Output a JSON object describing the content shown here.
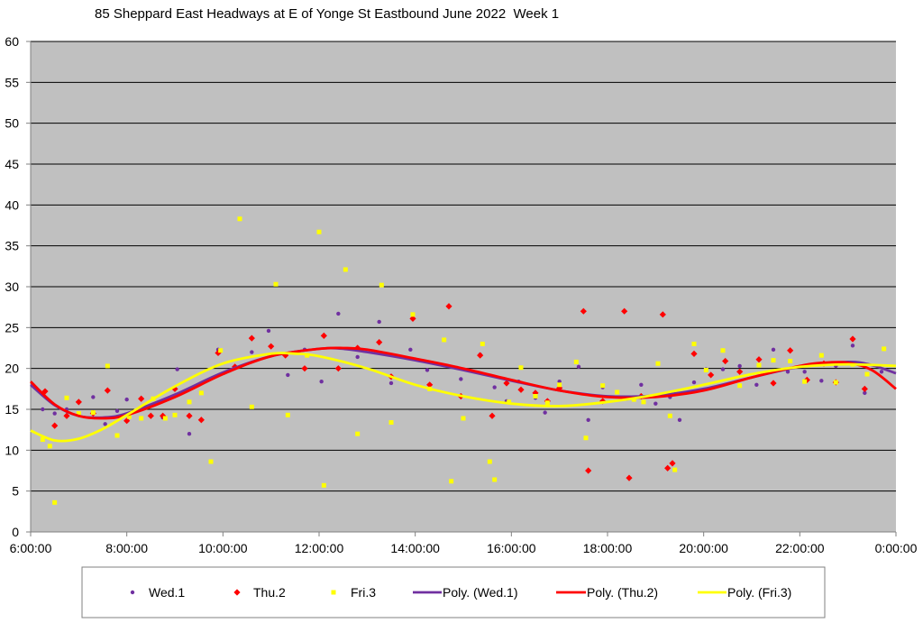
{
  "chart_data": {
    "type": "scatter",
    "title": "85 Sheppard East Headways at E of Yonge St Eastbound June 2022  Week 1",
    "xlabel": "",
    "ylabel": "",
    "x_unit": "hours since midnight",
    "xlim": [
      6,
      24
    ],
    "ylim": [
      0,
      60
    ],
    "grid": true,
    "legend_position": "bottom",
    "x_tick_values": [
      6,
      8,
      10,
      12,
      14,
      16,
      18,
      20,
      22,
      24
    ],
    "x_tick_labels": [
      "6:00:00",
      "8:00:00",
      "10:00:00",
      "12:00:00",
      "14:00:00",
      "16:00:00",
      "18:00:00",
      "20:00:00",
      "22:00:00",
      "0:00:00"
    ],
    "y_tick_values": [
      0,
      5,
      10,
      15,
      20,
      25,
      30,
      35,
      40,
      45,
      50,
      55,
      60
    ],
    "y_tick_labels": [
      "0",
      "5",
      "10",
      "15",
      "20",
      "25",
      "30",
      "35",
      "40",
      "45",
      "50",
      "55",
      "60"
    ],
    "colors": {
      "plot_bg": "#c0c0c0",
      "grid": "#000000",
      "wed": "#7030a0",
      "thu": "#ff0000",
      "fri": "#ffff00"
    },
    "series": [
      {
        "name": "Wed.1",
        "kind": "points",
        "marker": "circle",
        "color": "#7030a0",
        "x": [
          6.25,
          6.5,
          6.75,
          7.3,
          7.55,
          7.8,
          8.0,
          8.75,
          9.05,
          9.3,
          9.9,
          10.6,
          10.95,
          11.35,
          11.7,
          12.05,
          12.4,
          12.8,
          13.25,
          13.5,
          13.9,
          14.25,
          14.95,
          15.35,
          15.65,
          15.9,
          16.15,
          16.5,
          16.7,
          17.0,
          17.4,
          17.6,
          17.9,
          18.4,
          18.7,
          19.0,
          19.3,
          19.5,
          19.8,
          20.05,
          20.4,
          20.75,
          21.1,
          21.45,
          21.75,
          22.1,
          22.45,
          22.75,
          23.1,
          23.35,
          23.7
        ],
        "y": [
          15,
          14.5,
          15,
          16.5,
          13.2,
          14.8,
          16.2,
          14,
          19.9,
          12,
          22.3,
          22,
          24.6,
          19.2,
          22.3,
          18.4,
          26.7,
          21.4,
          25.7,
          18.2,
          22.3,
          19.8,
          18.7,
          21.7,
          17.7,
          16,
          18.4,
          16.4,
          14.6,
          18.4,
          20.2,
          13.7,
          17.7,
          16.3,
          18,
          15.7,
          16.5,
          13.7,
          18.3,
          19.9,
          19.9,
          20.3,
          18,
          22.3,
          19.6,
          19.6,
          18.5,
          20.3,
          22.8,
          17,
          19.6
        ]
      },
      {
        "name": "Thu.2",
        "kind": "points",
        "marker": "diamond",
        "color": "#ff0000",
        "x": [
          6.3,
          6.5,
          6.75,
          7.0,
          7.3,
          7.6,
          8.0,
          8.3,
          8.5,
          8.75,
          9.0,
          9.3,
          9.55,
          9.9,
          10.25,
          10.6,
          11.0,
          11.3,
          11.7,
          12.1,
          12.4,
          12.8,
          13.25,
          13.5,
          13.95,
          14.3,
          14.7,
          14.95,
          15.35,
          15.6,
          15.9,
          16.2,
          16.5,
          16.75,
          17.0,
          17.5,
          17.6,
          17.9,
          18.35,
          18.45,
          18.7,
          19.15,
          19.25,
          19.35,
          19.8,
          20.15,
          20.45,
          20.75,
          21.15,
          21.45,
          21.8,
          22.15,
          22.5,
          22.75,
          23.1,
          23.35
        ],
        "y": [
          17.2,
          13,
          14.2,
          15.9,
          14.5,
          17.3,
          13.6,
          16.3,
          14.2,
          14.2,
          17.5,
          14.2,
          13.7,
          21.9,
          20.2,
          23.7,
          22.7,
          21.6,
          20,
          24,
          20,
          22.5,
          23.2,
          19,
          26.1,
          18,
          27.6,
          16.6,
          21.6,
          14.2,
          18.2,
          17.4,
          17,
          16,
          17.6,
          27,
          7.5,
          16,
          27,
          6.6,
          16.6,
          26.6,
          7.8,
          8.4,
          21.8,
          19.2,
          20.9,
          19.6,
          21.1,
          18.2,
          22.2,
          18.6,
          20.6,
          18.3,
          23.6,
          17.5
        ]
      },
      {
        "name": "Fri.3",
        "kind": "points",
        "marker": "square",
        "color": "#ffff00",
        "x": [
          6.25,
          6.4,
          6.5,
          6.75,
          7.0,
          7.3,
          7.6,
          7.8,
          8.05,
          8.3,
          8.55,
          8.8,
          9.0,
          9.3,
          9.55,
          9.75,
          9.95,
          10.35,
          10.6,
          11.1,
          11.35,
          11.75,
          12.0,
          12.1,
          12.55,
          12.8,
          13.3,
          13.5,
          13.95,
          14.3,
          14.6,
          14.75,
          15.0,
          15.4,
          15.55,
          15.65,
          15.95,
          16.2,
          16.5,
          16.75,
          17.0,
          17.35,
          17.55,
          17.9,
          18.2,
          18.55,
          18.75,
          19.05,
          19.3,
          19.4,
          19.8,
          20.05,
          20.4,
          20.75,
          21.15,
          21.45,
          21.8,
          22.1,
          22.45,
          22.75,
          23.1,
          23.4,
          23.75
        ],
        "y": [
          11.3,
          10.5,
          3.6,
          16.4,
          14.5,
          14.6,
          20.3,
          11.8,
          14.1,
          13.9,
          16.3,
          13.9,
          14.3,
          15.9,
          17,
          8.6,
          22.2,
          38.3,
          15.3,
          30.3,
          14.3,
          21.6,
          36.7,
          5.7,
          32.1,
          12,
          30.2,
          13.4,
          26.6,
          17.5,
          23.5,
          6.2,
          13.9,
          23,
          8.6,
          6.4,
          15.9,
          20.1,
          16.6,
          15.8,
          18,
          20.8,
          11.5,
          17.9,
          17.1,
          16.2,
          15.9,
          20.6,
          14.2,
          7.6,
          23,
          19.8,
          22.2,
          17.9,
          20.4,
          21,
          20.9,
          18.4,
          21.6,
          18.3,
          20.5,
          19.3,
          22.4
        ]
      },
      {
        "name": "Poly. (Wed.1)",
        "kind": "line",
        "color": "#7030a0",
        "x": [
          6,
          6.5,
          7,
          7.5,
          8,
          9,
          10,
          11,
          12,
          12.5,
          13,
          14,
          15,
          16,
          17,
          18,
          19,
          20,
          21,
          22,
          23,
          23.5,
          24
        ],
        "y": [
          18,
          15.5,
          14.2,
          14,
          14.5,
          16.8,
          19.5,
          21.5,
          22.4,
          22.4,
          22,
          21,
          19.8,
          18.5,
          17.3,
          16.6,
          16.7,
          17.5,
          18.9,
          20.2,
          20.8,
          20.4,
          19.4
        ]
      },
      {
        "name": "Poly. (Thu.2)",
        "kind": "line",
        "color": "#ff0000",
        "x": [
          6,
          6.5,
          7,
          7.5,
          8,
          9,
          10,
          11,
          12,
          12.5,
          13,
          14,
          15,
          16,
          17,
          18,
          19,
          20,
          21,
          22,
          22.5,
          23,
          23.5,
          24
        ],
        "y": [
          18.4,
          15.6,
          14.2,
          13.9,
          14.3,
          16.5,
          19.3,
          21.5,
          22.4,
          22.5,
          22.3,
          21.2,
          20,
          18.6,
          17.3,
          16.5,
          16.5,
          17.3,
          18.9,
          20.3,
          20.7,
          20.7,
          19.8,
          17.5
        ]
      },
      {
        "name": "Poly. (Fri.3)",
        "kind": "line",
        "color": "#ffff00",
        "x": [
          6,
          6.5,
          7,
          7.5,
          8,
          9,
          10,
          11,
          11.5,
          12,
          13,
          14,
          15,
          16,
          17,
          18,
          19,
          20,
          21,
          22,
          23,
          24
        ],
        "y": [
          12.4,
          11.2,
          11.4,
          12.6,
          14.3,
          17.8,
          20.6,
          21.8,
          21.8,
          21.5,
          20,
          18,
          16.6,
          15.7,
          15.4,
          15.9,
          16.8,
          18,
          19.3,
          20.2,
          20.5,
          20.3
        ]
      }
    ]
  }
}
